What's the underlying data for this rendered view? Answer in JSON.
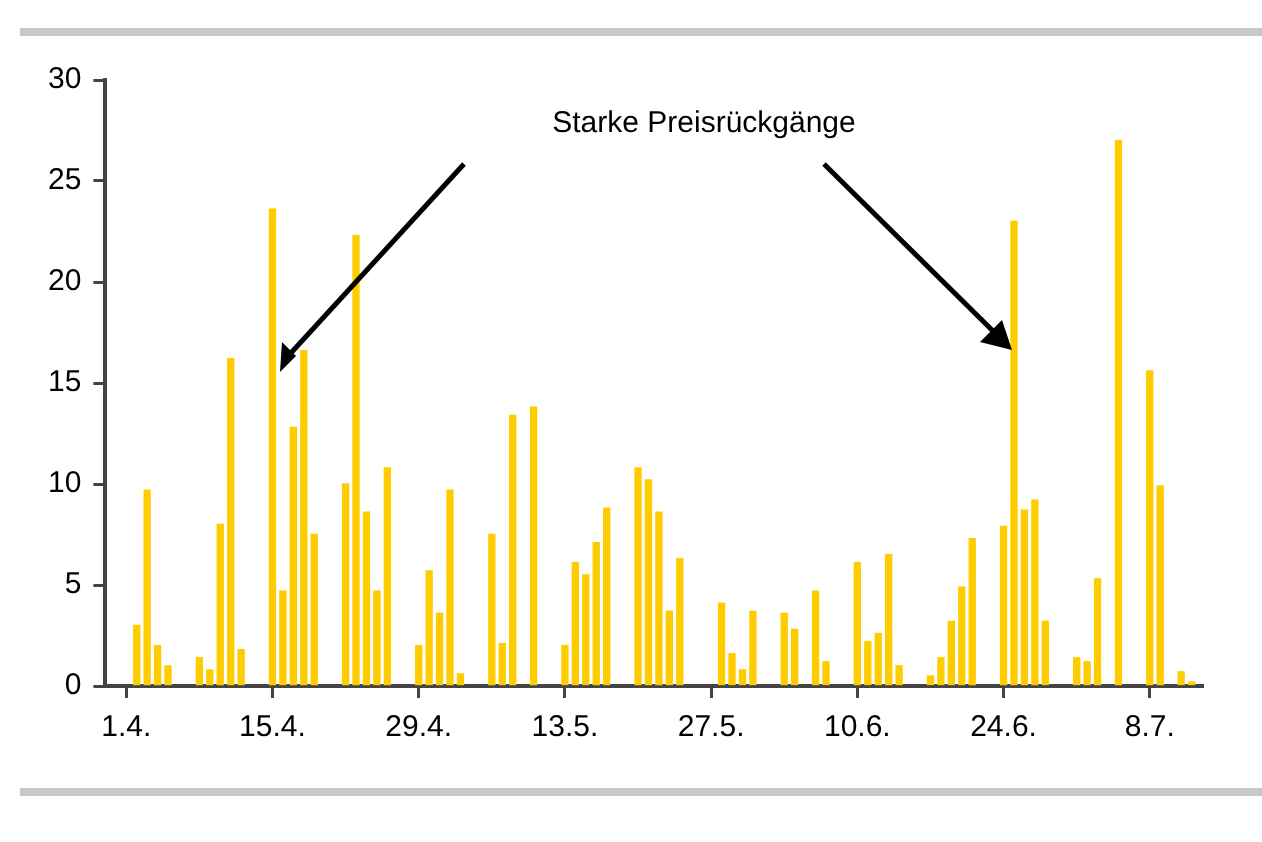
{
  "chart_data": {
    "type": "bar",
    "color": "#ffcc00",
    "x": [
      "--04-02",
      "--04-03",
      "--04-04",
      "--04-05",
      "--04-08",
      "--04-09",
      "--04-10",
      "--04-11",
      "--04-12",
      "--04-15",
      "--04-16",
      "--04-17",
      "--04-18",
      "--04-19",
      "--04-22",
      "--04-23",
      "--04-24",
      "--04-25",
      "--04-26",
      "--04-29",
      "--04-30",
      "--05-01",
      "--05-02",
      "--05-03",
      "--05-06",
      "--05-07",
      "--05-08",
      "--05-10",
      "--05-13",
      "--05-14",
      "--05-15",
      "--05-16",
      "--05-17",
      "--05-20",
      "--05-21",
      "--05-22",
      "--05-23",
      "--05-24",
      "--05-28",
      "--05-29",
      "--05-30",
      "--05-31",
      "--06-03",
      "--06-04",
      "--06-06",
      "--06-07",
      "--06-10",
      "--06-11",
      "--06-12",
      "--06-13",
      "--06-14",
      "--06-17",
      "--06-18",
      "--06-19",
      "--06-20",
      "--06-21",
      "--06-24",
      "--06-25",
      "--06-26",
      "--06-27",
      "--06-28",
      "--07-01",
      "--07-02",
      "--07-03",
      "--07-05",
      "--07-08",
      "--07-09",
      "--07-11",
      "--07-12"
    ],
    "values": [
      3.0,
      9.7,
      2.0,
      1.0,
      1.4,
      0.8,
      8.0,
      16.2,
      1.8,
      23.6,
      4.7,
      12.8,
      16.6,
      7.5,
      10.0,
      22.3,
      8.6,
      4.7,
      10.8,
      2.0,
      5.7,
      3.6,
      9.7,
      0.6,
      7.5,
      2.1,
      13.4,
      13.8,
      2.0,
      6.1,
      5.5,
      7.1,
      8.8,
      10.8,
      10.2,
      8.6,
      3.7,
      6.3,
      4.1,
      1.6,
      0.8,
      3.7,
      3.6,
      2.8,
      4.7,
      1.2,
      6.1,
      2.2,
      2.6,
      6.5,
      1.0,
      0.5,
      1.4,
      3.2,
      4.9,
      7.3,
      7.9,
      23.0,
      8.7,
      9.2,
      3.2,
      1.4,
      1.2,
      5.3,
      27.0,
      15.6,
      9.9,
      0.7,
      0.2
    ],
    "xlim": [
      "--03-30",
      "--07-13"
    ],
    "xticks": [
      {
        "value": "--04-01",
        "label": "1.4."
      },
      {
        "value": "--04-15",
        "label": "15.4."
      },
      {
        "value": "--04-29",
        "label": "29.4."
      },
      {
        "value": "--05-13",
        "label": "13.5."
      },
      {
        "value": "--05-27",
        "label": "27.5."
      },
      {
        "value": "--06-10",
        "label": "10.6."
      },
      {
        "value": "--06-24",
        "label": "24.6."
      },
      {
        "value": "--07-08",
        "label": "8.7."
      }
    ],
    "ylim": [
      0,
      30
    ],
    "yticks": [
      0,
      5,
      10,
      15,
      20,
      25,
      30
    ],
    "grid": false,
    "legend": false,
    "annotations": [
      "Starke Preisrückgänge"
    ]
  }
}
